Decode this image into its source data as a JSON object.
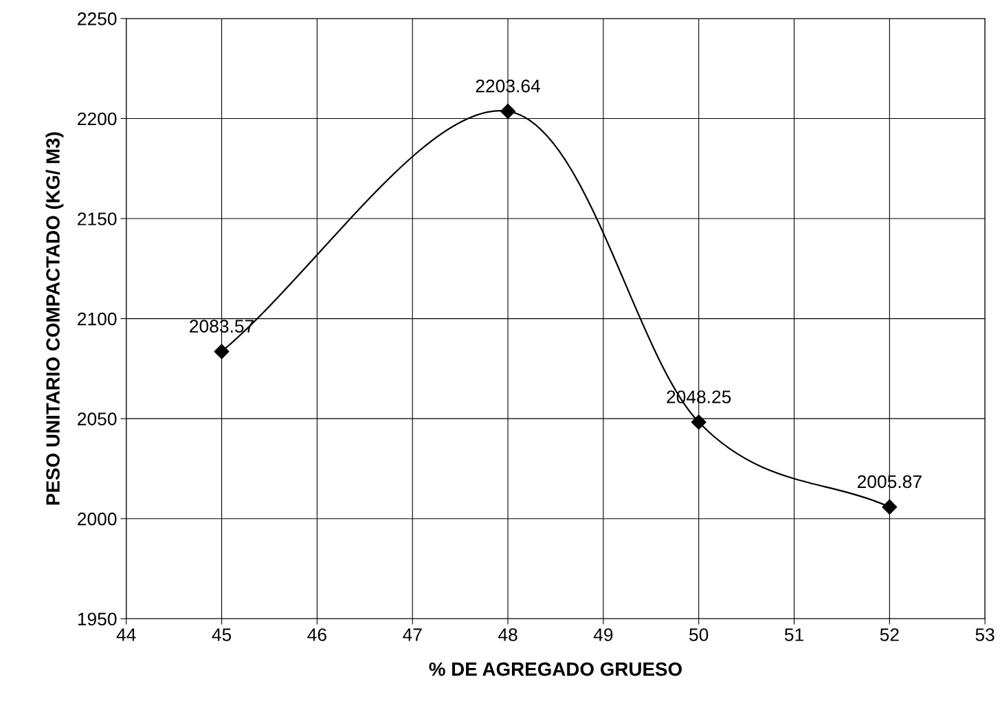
{
  "chart_data": {
    "type": "line",
    "xlabel": "% DE AGREGADO GRUESO",
    "ylabel": "PESO UNITARIO COMPACTADO (KG/ M3)",
    "x": [
      45,
      48,
      50,
      52
    ],
    "series": [
      {
        "color": "#000000",
        "values": [
          2083.57,
          2203.64,
          2048.25,
          2005.87
        ]
      }
    ],
    "xlim": [
      44,
      53
    ],
    "xticks": [
      44,
      45,
      46,
      47,
      48,
      49,
      50,
      51,
      52,
      53
    ],
    "ylim": [
      1950,
      2250
    ],
    "yticks": [
      1950,
      2000,
      2050,
      2100,
      2150,
      2200,
      2250
    ],
    "grid": true,
    "marker": "diamond",
    "line_style": "solid",
    "data_labels": true
  }
}
